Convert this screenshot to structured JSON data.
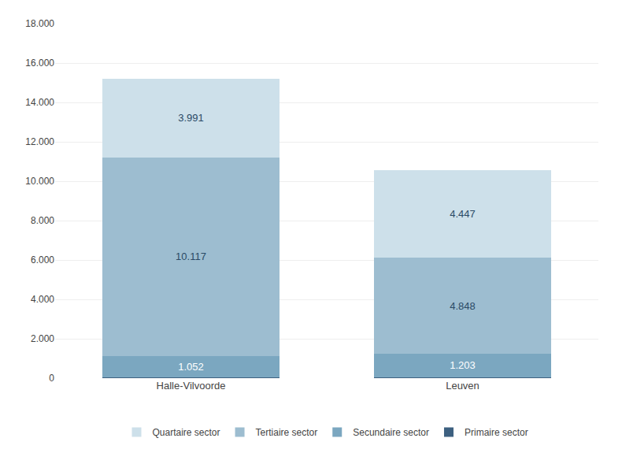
{
  "chart_data": {
    "type": "bar",
    "stacked": true,
    "categories": [
      "Halle-Vilvoorde",
      "Leuven"
    ],
    "series": [
      {
        "name": "Primaire sector",
        "color": "#3d6080",
        "values": [
          50,
          50
        ]
      },
      {
        "name": "Secundaire sector",
        "color": "#7ba7c0",
        "values": [
          1052,
          1203
        ],
        "value_labels": [
          "1.052",
          "1.203"
        ]
      },
      {
        "name": "Tertiaire sector",
        "color": "#9dbdd0",
        "values": [
          10117,
          4848
        ],
        "value_labels": [
          "10.117",
          "4.848"
        ]
      },
      {
        "name": "Quartaire sector",
        "color": "#cde0ea",
        "values": [
          3991,
          4447
        ],
        "value_labels": [
          "3.991",
          "4.447"
        ]
      }
    ],
    "data_labels": true,
    "ylim": [
      0,
      18000
    ],
    "yticks": [
      0,
      {
        "value": 2000,
        "label": "2.000"
      },
      {
        "value": 4000,
        "label": "4.000"
      },
      {
        "value": 6000,
        "label": "6.000"
      },
      {
        "value": 8000,
        "label": "8.000"
      },
      {
        "value": 10000,
        "label": "10.000"
      },
      {
        "value": 12000,
        "label": "12.000"
      },
      {
        "value": 14000,
        "label": "14.000"
      },
      {
        "value": 16000,
        "label": "16.000"
      },
      {
        "value": 18000,
        "label": "18.000"
      }
    ],
    "grid": true,
    "legend": "bottom"
  }
}
